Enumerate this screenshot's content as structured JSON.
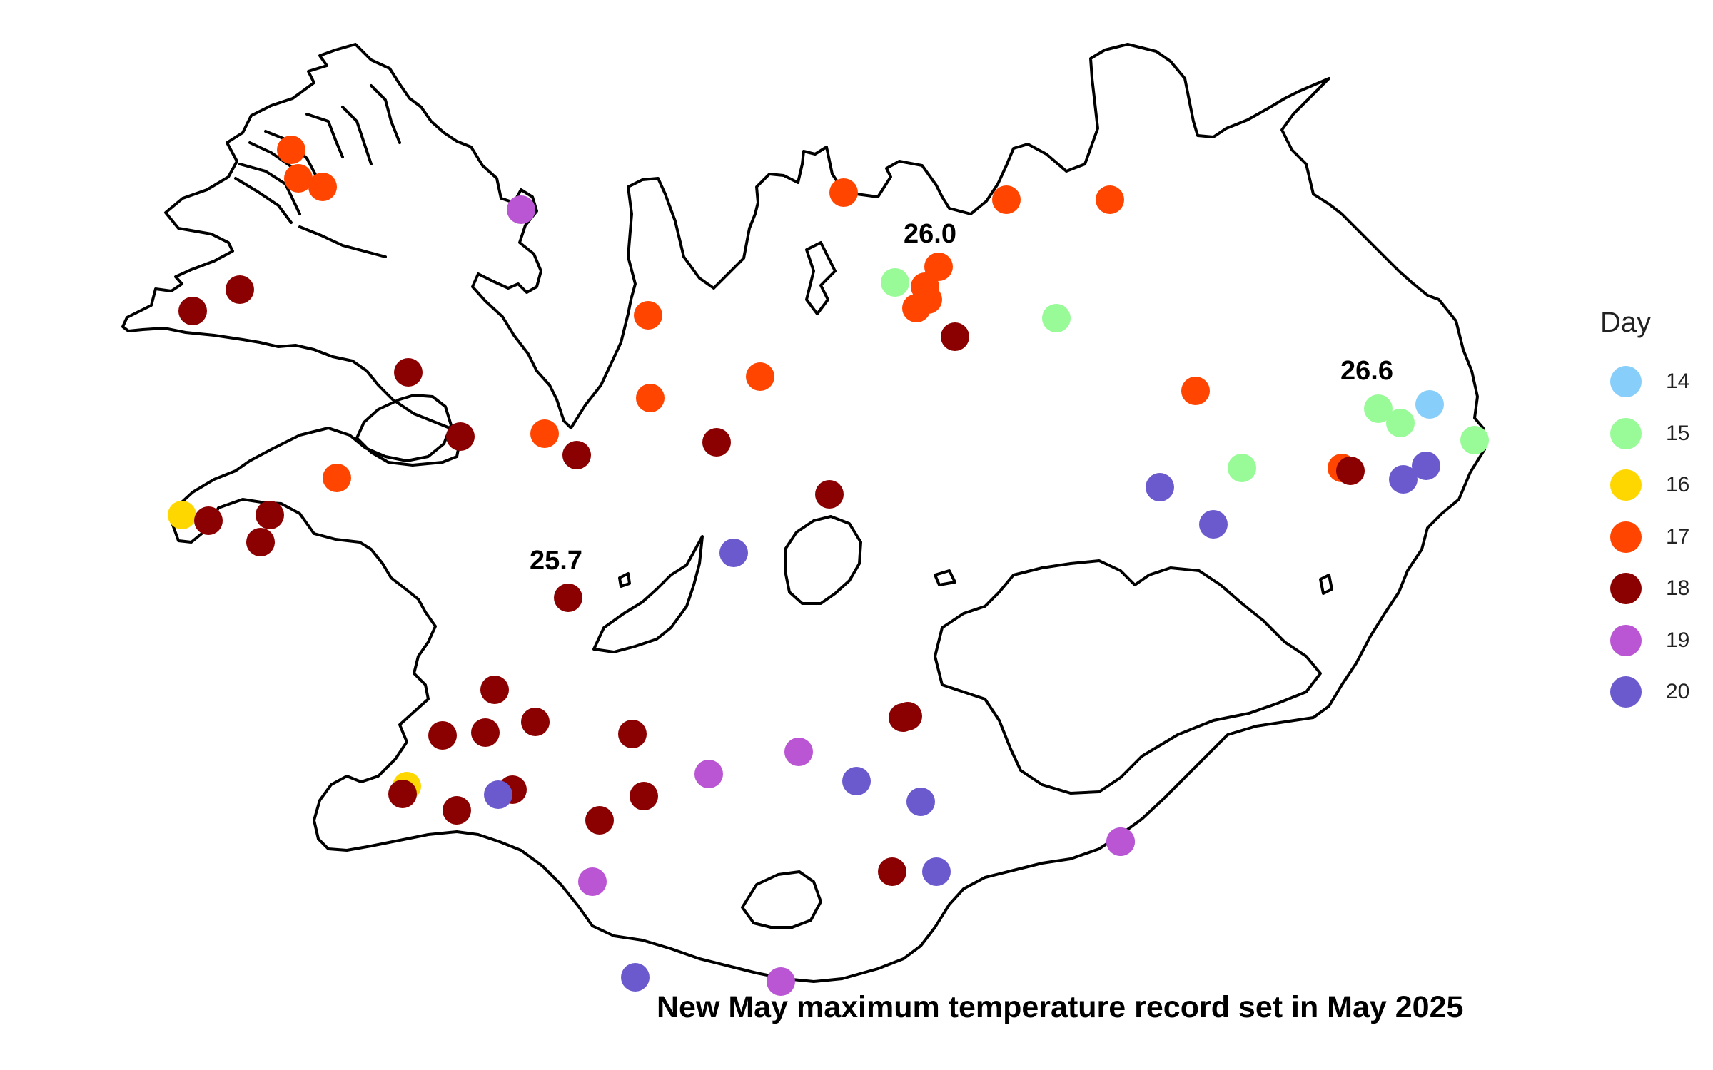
{
  "legend": {
    "title": "Day",
    "items": [
      {
        "day": "14",
        "color": "#87CEFA"
      },
      {
        "day": "15",
        "color": "#98FB98"
      },
      {
        "day": "16",
        "color": "#FFD700"
      },
      {
        "day": "17",
        "color": "#FF4500"
      },
      {
        "day": "18",
        "color": "#8B0000"
      },
      {
        "day": "19",
        "color": "#BA55D3"
      },
      {
        "day": "20",
        "color": "#6A5ACD"
      }
    ]
  },
  "annotations": [
    "26.0",
    "26.6",
    "25.7"
  ],
  "caption": "New May maximum temperature record set in May 2025",
  "map_data": {
    "region": "Iceland",
    "stations": [
      {
        "day": "17"
      },
      {
        "day": "17"
      },
      {
        "day": "17"
      },
      {
        "day": "19"
      },
      {
        "day": "18"
      },
      {
        "day": "18"
      },
      {
        "day": "18"
      },
      {
        "day": "18"
      },
      {
        "day": "17"
      },
      {
        "day": "16"
      },
      {
        "day": "18"
      },
      {
        "day": "18"
      },
      {
        "day": "18"
      },
      {
        "day": "17"
      },
      {
        "day": "17"
      },
      {
        "day": "17"
      },
      {
        "day": "17"
      },
      {
        "day": "18"
      },
      {
        "day": "17"
      },
      {
        "day": "17"
      },
      {
        "day": "15"
      },
      {
        "day": "17"
      },
      {
        "day": "17"
      },
      {
        "day": "17"
      },
      {
        "day": "17"
      },
      {
        "day": "17"
      },
      {
        "day": "18"
      },
      {
        "day": "15"
      },
      {
        "day": "18"
      },
      {
        "day": "17"
      },
      {
        "day": "15"
      },
      {
        "day": "15"
      },
      {
        "day": "14"
      },
      {
        "day": "15"
      },
      {
        "day": "17"
      },
      {
        "day": "18"
      },
      {
        "day": "20"
      },
      {
        "day": "20"
      },
      {
        "day": "15"
      },
      {
        "day": "20"
      },
      {
        "day": "20"
      },
      {
        "day": "18"
      },
      {
        "day": "20"
      },
      {
        "day": "18"
      },
      {
        "day": "18"
      },
      {
        "day": "18"
      },
      {
        "day": "18"
      },
      {
        "day": "18"
      },
      {
        "day": "18"
      },
      {
        "day": "18"
      },
      {
        "day": "18"
      },
      {
        "day": "16"
      },
      {
        "day": "18"
      },
      {
        "day": "18"
      },
      {
        "day": "20"
      },
      {
        "day": "18"
      },
      {
        "day": "18"
      },
      {
        "day": "18"
      },
      {
        "day": "19"
      },
      {
        "day": "19"
      },
      {
        "day": "20"
      },
      {
        "day": "20"
      },
      {
        "day": "20"
      },
      {
        "day": "18"
      },
      {
        "day": "19"
      },
      {
        "day": "20"
      },
      {
        "day": "19"
      },
      {
        "day": "20"
      },
      {
        "day": "19"
      }
    ]
  }
}
